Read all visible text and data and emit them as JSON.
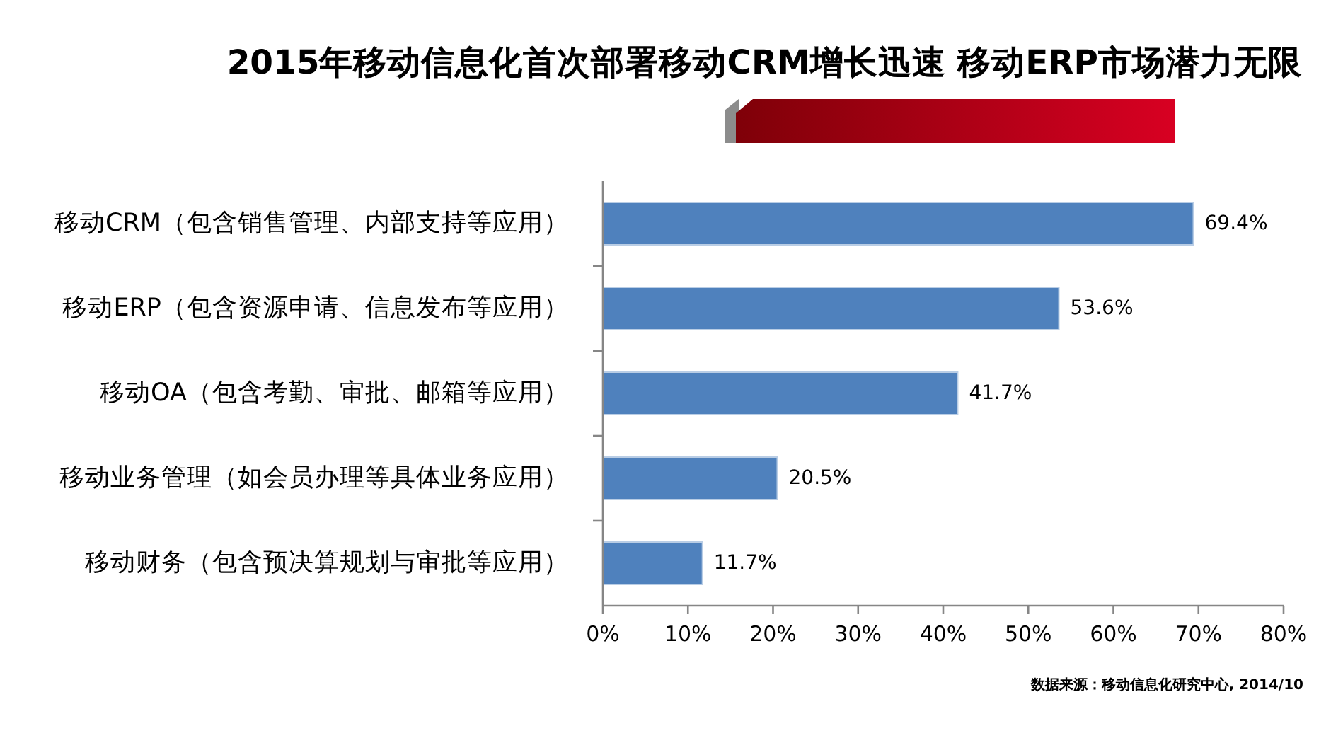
{
  "chart_data": {
    "type": "bar",
    "orientation": "horizontal",
    "title": "2015年移动信息化首次部署移动CRM增长迅速 移动ERP市场潜力无限",
    "categories": [
      "移动CRM（包含销售管理、内部支持等应用）",
      "移动ERP（包含资源申请、信息发布等应用）",
      "移动OA（包含考勤、审批、邮箱等应用）",
      "移动业务管理（如会员办理等具体业务应用）",
      "移动财务（包含预决算规划与审批等应用）"
    ],
    "values": [
      69.4,
      53.6,
      41.7,
      20.5,
      11.7
    ],
    "color": "#4f81bd",
    "value_labels": [
      "69.4%",
      "53.6%",
      "41.7%",
      "20.5%",
      "11.7%"
    ],
    "xlim": [
      0,
      80
    ],
    "xticks": [
      {
        "value": 0,
        "label": "0%"
      },
      {
        "value": 10,
        "label": "10%"
      },
      {
        "value": 20,
        "label": "20%"
      },
      {
        "value": 30,
        "label": "30%"
      },
      {
        "value": 40,
        "label": "40%"
      },
      {
        "value": 50,
        "label": "50%"
      },
      {
        "value": 60,
        "label": "60%"
      },
      {
        "value": 70,
        "label": "70%"
      },
      {
        "value": 80,
        "label": "80%"
      }
    ],
    "annotations": [
      "数据来源：移动信息化研究中心, 2014/10"
    ]
  }
}
